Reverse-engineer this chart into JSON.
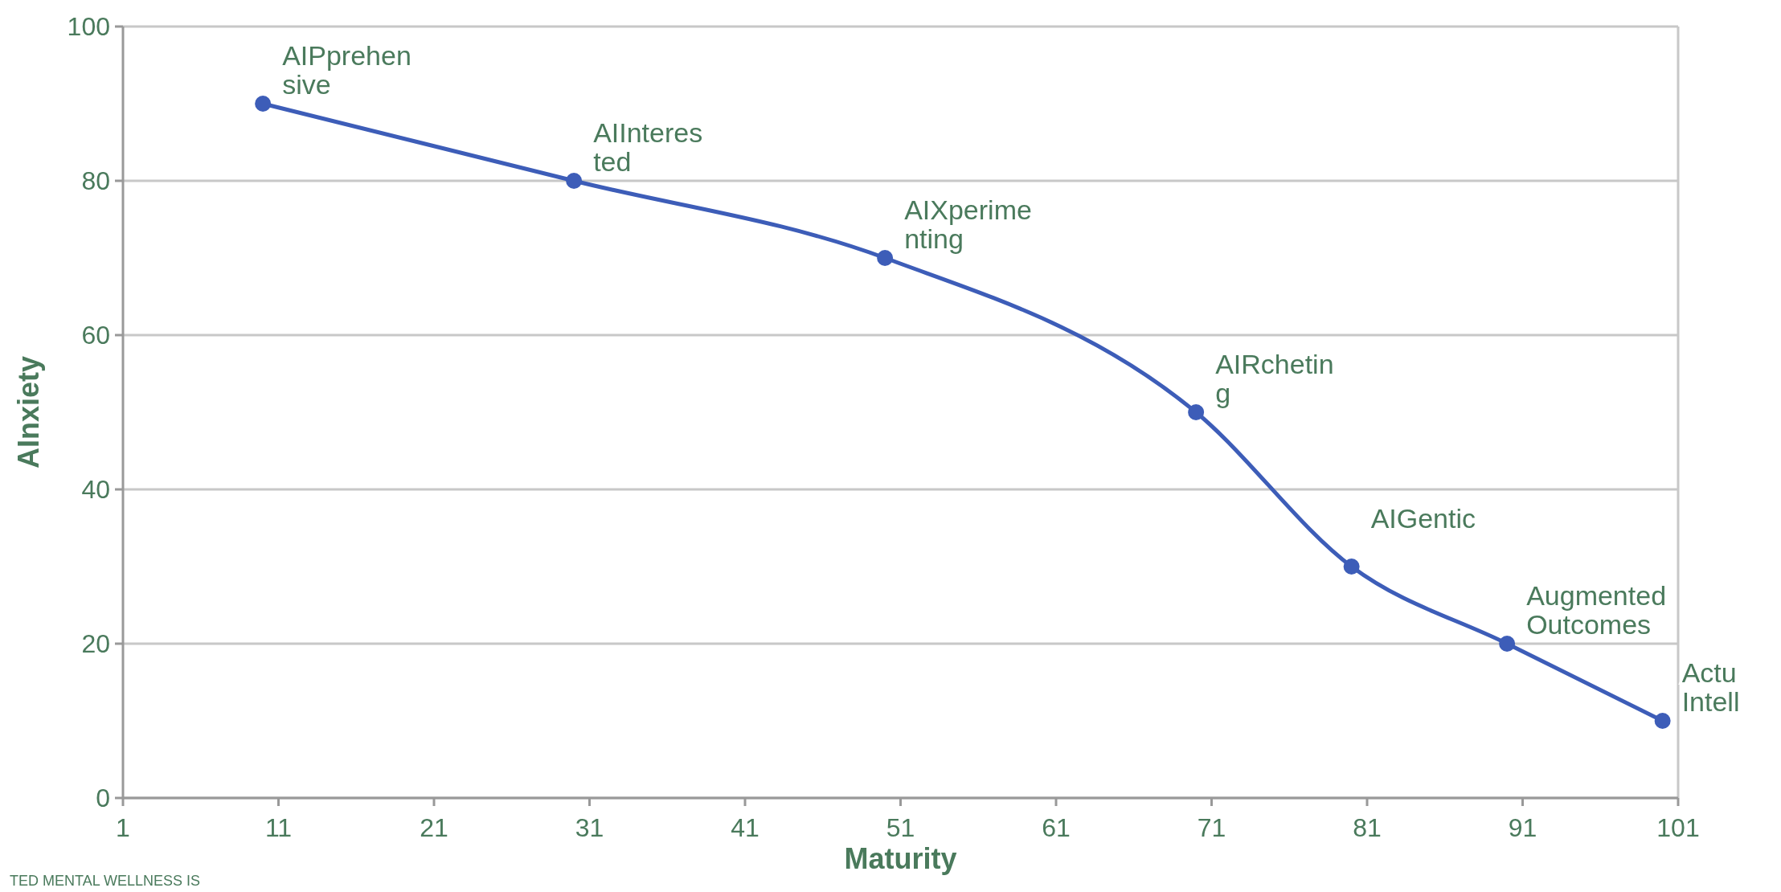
{
  "chart_data": {
    "type": "line",
    "xlabel": "Maturity",
    "ylabel": "AInxiety",
    "x": [
      10,
      30,
      50,
      70,
      80,
      90,
      100
    ],
    "series": [
      {
        "color": "#3d5db8",
        "values": [
          90,
          80,
          70,
          50,
          30,
          20,
          10
        ]
      }
    ],
    "xlim": [
      1,
      101
    ],
    "xticks": [
      1,
      11,
      21,
      31,
      41,
      51,
      61,
      71,
      81,
      91,
      101
    ],
    "ylim": [
      0,
      100
    ],
    "yticks": [
      0,
      20,
      40,
      60,
      80,
      100
    ],
    "grid": "y",
    "marker": "circle",
    "line_style": "solid",
    "annotations": [
      {
        "text": "AIPprehensive",
        "x": 10,
        "y": 90
      },
      {
        "text": "AIInterested",
        "x": 30,
        "y": 80
      },
      {
        "text": "AIXperimenting",
        "x": 50,
        "y": 70
      },
      {
        "text": "AIRcheting",
        "x": 70,
        "y": 50
      },
      {
        "text": "AIGentic",
        "x": 80,
        "y": 30
      },
      {
        "text": "Augmented Outcomes",
        "x": 90,
        "y": 20
      },
      {
        "text": "Actu Intell",
        "x": 100,
        "y": 10
      },
      "TED MENTAL WELLNESS IS"
    ]
  }
}
